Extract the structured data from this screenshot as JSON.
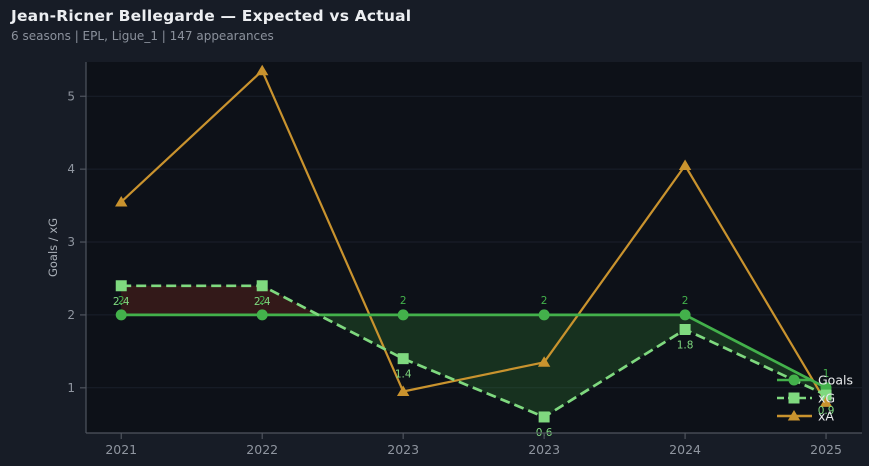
{
  "header": {
    "title": "Jean-Ricner Bellegarde — Expected vs Actual",
    "subtitle": "6 seasons | EPL, Ligue_1 | 147 appearances"
  },
  "colors": {
    "outer_bg": "#171c26",
    "plot_bg": "#0d1118",
    "grid": "#1a202b",
    "spine": "#4f545e",
    "tick_label": "#8f959f",
    "axis_label": "#aab0b8",
    "legend_text": "#e8eaec",
    "goals": "#43b14b",
    "xg": "#7fd97f",
    "xa": "#c9932e",
    "fill_goals_above_xg": "#2e7d32",
    "fill_xg_above_goals": "#8b2e1e"
  },
  "chart_data": {
    "type": "line",
    "title": "Jean-Ricner Bellegarde — Expected vs Actual",
    "subtitle": "6 seasons | EPL, Ligue_1 | 147 appearances",
    "xlabel": "",
    "ylabel": "Goals / xG",
    "categories": [
      "2021",
      "2022",
      "2023",
      "2023",
      "2024",
      "2025"
    ],
    "yticks": [
      "1",
      "2",
      "3",
      "4",
      "5"
    ],
    "ylim": [
      0.38,
      5.47
    ],
    "xlim": [
      -0.25,
      5.255
    ],
    "grid": true,
    "legend_position": "lower right",
    "series": [
      {
        "name": "Goals",
        "values": [
          2,
          2,
          2,
          2,
          2,
          1
        ],
        "labels": [
          "2",
          "2",
          "2",
          "2",
          "2",
          "1"
        ],
        "label_position": "above",
        "line_style": "solid",
        "marker": "circle",
        "color_key": "goals"
      },
      {
        "name": "xG",
        "values": [
          2.4,
          2.4,
          1.4,
          0.6,
          1.8,
          0.9
        ],
        "labels": [
          "2.4",
          "2.4",
          "1.4",
          "0.6",
          "1.8",
          "0.9"
        ],
        "label_position": "below",
        "line_style": "dashed",
        "marker": "square",
        "color_key": "xg"
      },
      {
        "name": "xA",
        "values": [
          3.55,
          5.35,
          0.95,
          1.35,
          4.05,
          0.8
        ],
        "labels": [],
        "label_position": "none",
        "line_style": "solid",
        "marker": "triangle",
        "color_key": "xa"
      }
    ],
    "fill_between": {
      "series_a": "xG",
      "series_b": "Goals",
      "a_above_b_color_key": "fill_xg_above_goals",
      "b_above_a_color_key": "fill_goals_above_xg"
    }
  },
  "legend": {
    "items": [
      {
        "label": "Goals",
        "color_key": "goals",
        "marker": "circle",
        "line_style": "solid"
      },
      {
        "label": "xG",
        "color_key": "xg",
        "marker": "square",
        "line_style": "dashed"
      },
      {
        "label": "xA",
        "color_key": "xa",
        "marker": "triangle",
        "line_style": "solid"
      }
    ]
  }
}
